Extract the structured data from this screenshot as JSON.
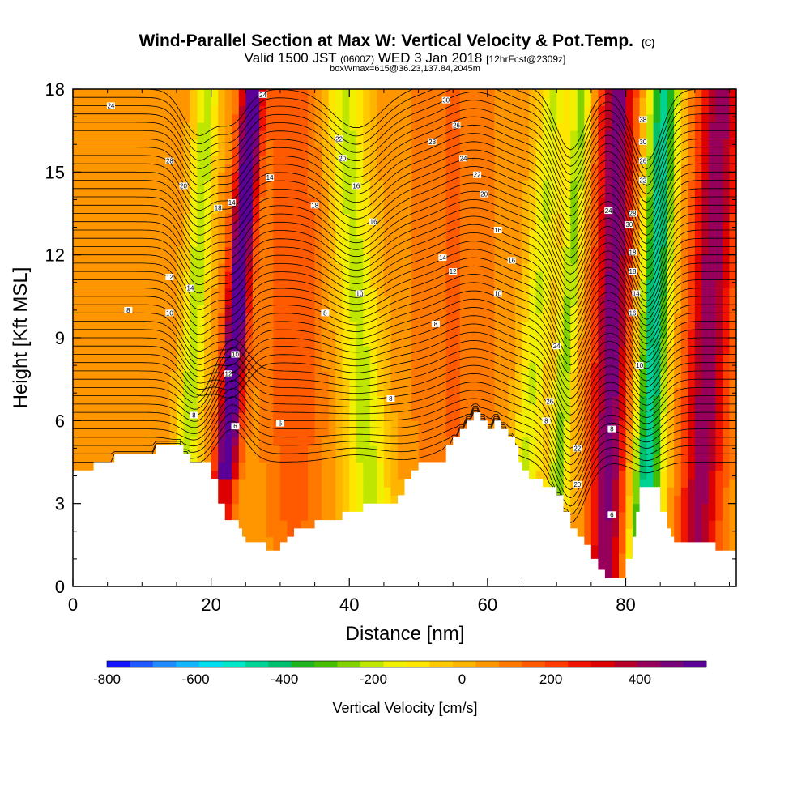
{
  "chart_data": {
    "type": "heatmap",
    "title": "Wind-Parallel Section at Max W: Vertical Velocity & Pot.Temp.",
    "title_mark": "(C)",
    "subtitle_parts": [
      "Valid 1500 JST",
      "(0600Z)",
      "WED 3 Jan 2018",
      "[12hrFcst@2309z]"
    ],
    "subtitle2": "boxWmax=615@36.23,137.84,2045m",
    "xlabel": "Distance [nm]",
    "ylabel": "Height [Kft MSL]",
    "xlim": [
      0,
      96
    ],
    "ylim": [
      0,
      18
    ],
    "x_ticks": [
      0,
      20,
      40,
      60,
      80
    ],
    "y_ticks": [
      0,
      3,
      6,
      9,
      12,
      15,
      18
    ],
    "colorbar": {
      "label": "Vertical Velocity [cm/s]",
      "ticks": [
        -800,
        -600,
        -400,
        -200,
        0,
        200,
        400
      ],
      "range": [
        -800,
        550
      ],
      "colors": [
        "#1414ff",
        "#1e5aff",
        "#1e8cff",
        "#14b4ff",
        "#00dcf0",
        "#00e6c8",
        "#00d296",
        "#00be6e",
        "#1eb41e",
        "#46be00",
        "#82d200",
        "#bee600",
        "#f0f000",
        "#ffe600",
        "#ffc800",
        "#ffb400",
        "#ff9600",
        "#ff7800",
        "#ff5a00",
        "#ff3c00",
        "#f01400",
        "#dc0000",
        "#b40028",
        "#96005a",
        "#780078",
        "#5a0096"
      ]
    },
    "velocity_features": [
      {
        "x": 23.5,
        "w": 1.6,
        "amp": 560,
        "tilt": 0.28
      },
      {
        "x": 17.5,
        "w": 1.8,
        "amp": -280,
        "tilt": 0.22
      },
      {
        "x": 41.5,
        "w": 3.0,
        "amp": -260,
        "tilt": -0.25
      },
      {
        "x": 67.0,
        "w": 2.2,
        "amp": -240,
        "tilt": 0.3
      },
      {
        "x": 71.5,
        "w": 1.5,
        "amp": -300,
        "tilt": 0.25
      },
      {
        "x": 78.0,
        "w": 2.6,
        "amp": 420,
        "tilt": 0.1
      },
      {
        "x": 84.0,
        "w": 2.3,
        "amp": -520,
        "tilt": 0.18
      },
      {
        "x": 92.0,
        "w": 3.0,
        "amp": 380,
        "tilt": 0.2
      },
      {
        "x": 32.0,
        "w": 4.0,
        "amp": 120,
        "tilt": 0.0
      },
      {
        "x": 55.0,
        "w": 5.0,
        "amp": 80,
        "tilt": 0.0
      }
    ],
    "terrain_points": [
      [
        0,
        4.2
      ],
      [
        3,
        4.2
      ],
      [
        3,
        4.5
      ],
      [
        6,
        4.5
      ],
      [
        6,
        4.8
      ],
      [
        9,
        4.8
      ],
      [
        9,
        4.8
      ],
      [
        12,
        4.8
      ],
      [
        12,
        5.1
      ],
      [
        16,
        5.1
      ],
      [
        16,
        4.8
      ],
      [
        17,
        4.8
      ],
      [
        17,
        4.5
      ],
      [
        20,
        4.5
      ],
      [
        20,
        3.9
      ],
      [
        21,
        3.9
      ],
      [
        21,
        3.0
      ],
      [
        22,
        3.0
      ],
      [
        22,
        2.4
      ],
      [
        23,
        2.4
      ],
      [
        23,
        2.4
      ],
      [
        24,
        2.4
      ],
      [
        24,
        2.1
      ],
      [
        24.5,
        2.1
      ],
      [
        24.5,
        1.8
      ],
      [
        25,
        1.8
      ],
      [
        25,
        1.6
      ],
      [
        27,
        1.6
      ],
      [
        27,
        1.6
      ],
      [
        28,
        1.6
      ],
      [
        28,
        1.3
      ],
      [
        30,
        1.3
      ],
      [
        30,
        1.6
      ],
      [
        31,
        1.6
      ],
      [
        31,
        1.8
      ],
      [
        32,
        1.8
      ],
      [
        32,
        2.1
      ],
      [
        33,
        2.1
      ],
      [
        33,
        2.1
      ],
      [
        34,
        2.1
      ],
      [
        34,
        2.1
      ],
      [
        35,
        2.1
      ],
      [
        35,
        2.4
      ],
      [
        39,
        2.4
      ],
      [
        39,
        2.7
      ],
      [
        40,
        2.7
      ],
      [
        40,
        2.7
      ],
      [
        42,
        2.7
      ],
      [
        42,
        3.0
      ],
      [
        47,
        3.0
      ],
      [
        47,
        3.3
      ],
      [
        48,
        3.3
      ],
      [
        48,
        3.9
      ],
      [
        49,
        3.9
      ],
      [
        49,
        4.2
      ],
      [
        50,
        4.2
      ],
      [
        50,
        4.5
      ],
      [
        54,
        4.5
      ],
      [
        54,
        5.1
      ],
      [
        55,
        5.1
      ],
      [
        55,
        5.4
      ],
      [
        56,
        5.4
      ],
      [
        56,
        5.7
      ],
      [
        57,
        5.7
      ],
      [
        57,
        6.0
      ],
      [
        58,
        6.0
      ],
      [
        58,
        6.3
      ],
      [
        59,
        6.3
      ],
      [
        59,
        6.0
      ],
      [
        60,
        6.0
      ],
      [
        60,
        5.7
      ],
      [
        61,
        5.7
      ],
      [
        61,
        6.0
      ],
      [
        62,
        6.0
      ],
      [
        62,
        5.7
      ],
      [
        63,
        5.7
      ],
      [
        63,
        5.4
      ],
      [
        64,
        5.4
      ],
      [
        64,
        5.1
      ],
      [
        64.5,
        5.1
      ],
      [
        64.5,
        4.5
      ],
      [
        65,
        4.5
      ],
      [
        65,
        4.2
      ],
      [
        66,
        4.2
      ],
      [
        66,
        3.9
      ],
      [
        68,
        3.9
      ],
      [
        68,
        3.6
      ],
      [
        70,
        3.6
      ],
      [
        70,
        3.3
      ],
      [
        71,
        3.3
      ],
      [
        71,
        2.7
      ],
      [
        72,
        2.7
      ],
      [
        72,
        2.1
      ],
      [
        73,
        2.1
      ],
      [
        73,
        1.8
      ],
      [
        74,
        1.8
      ],
      [
        74,
        1.5
      ],
      [
        75,
        1.5
      ],
      [
        75,
        1.0
      ],
      [
        76,
        1.0
      ],
      [
        76,
        0.6
      ],
      [
        77,
        0.6
      ],
      [
        77,
        0.3
      ],
      [
        80,
        0.3
      ],
      [
        80,
        0.6
      ],
      [
        80,
        0.6
      ],
      [
        80,
        1.0
      ],
      [
        81,
        1.0
      ],
      [
        81,
        1.8
      ],
      [
        81.5,
        1.8
      ],
      [
        81.5,
        2.7
      ],
      [
        82,
        2.7
      ],
      [
        82,
        3.6
      ],
      [
        85,
        3.6
      ],
      [
        85,
        2.7
      ],
      [
        86,
        2.7
      ],
      [
        86,
        2.1
      ],
      [
        86.5,
        2.1
      ],
      [
        86.5,
        1.8
      ],
      [
        87,
        1.8
      ],
      [
        87,
        1.6
      ],
      [
        93,
        1.6
      ],
      [
        93,
        1.3
      ],
      [
        96,
        1.3
      ]
    ],
    "theta_contours": {
      "count": 46,
      "labels": [
        {
          "x": 5.5,
          "y": 17.4,
          "text": "24"
        },
        {
          "x": 14.0,
          "y": 15.4,
          "text": "28"
        },
        {
          "x": 16.0,
          "y": 14.5,
          "text": "20"
        },
        {
          "x": 21.0,
          "y": 13.7,
          "text": "18"
        },
        {
          "x": 23.0,
          "y": 13.9,
          "text": "14"
        },
        {
          "x": 14.0,
          "y": 11.2,
          "text": "12"
        },
        {
          "x": 17.0,
          "y": 10.8,
          "text": "14"
        },
        {
          "x": 14.0,
          "y": 9.9,
          "text": "10"
        },
        {
          "x": 8.0,
          "y": 10.0,
          "text": "8"
        },
        {
          "x": 23.5,
          "y": 8.4,
          "text": "10"
        },
        {
          "x": 22.5,
          "y": 7.7,
          "text": "12"
        },
        {
          "x": 17.5,
          "y": 6.2,
          "text": "8"
        },
        {
          "x": 23.5,
          "y": 5.8,
          "text": "6"
        },
        {
          "x": 30.0,
          "y": 5.9,
          "text": "6"
        },
        {
          "x": 27.5,
          "y": 17.8,
          "text": "24"
        },
        {
          "x": 28.5,
          "y": 14.8,
          "text": "14"
        },
        {
          "x": 35.0,
          "y": 13.8,
          "text": "18"
        },
        {
          "x": 38.5,
          "y": 16.2,
          "text": "22"
        },
        {
          "x": 39.0,
          "y": 15.5,
          "text": "20"
        },
        {
          "x": 41.0,
          "y": 14.5,
          "text": "16"
        },
        {
          "x": 43.5,
          "y": 13.2,
          "text": "16"
        },
        {
          "x": 41.5,
          "y": 10.6,
          "text": "10"
        },
        {
          "x": 36.5,
          "y": 9.9,
          "text": "8"
        },
        {
          "x": 46.0,
          "y": 6.8,
          "text": "8"
        },
        {
          "x": 52.5,
          "y": 9.5,
          "text": "8"
        },
        {
          "x": 53.5,
          "y": 11.9,
          "text": "14"
        },
        {
          "x": 55.0,
          "y": 11.4,
          "text": "12"
        },
        {
          "x": 54.0,
          "y": 17.6,
          "text": "30"
        },
        {
          "x": 55.5,
          "y": 16.7,
          "text": "26"
        },
        {
          "x": 52.0,
          "y": 16.1,
          "text": "28"
        },
        {
          "x": 56.5,
          "y": 15.5,
          "text": "24"
        },
        {
          "x": 58.5,
          "y": 14.9,
          "text": "22"
        },
        {
          "x": 59.5,
          "y": 14.2,
          "text": "20"
        },
        {
          "x": 61.5,
          "y": 12.9,
          "text": "16"
        },
        {
          "x": 63.5,
          "y": 11.8,
          "text": "16"
        },
        {
          "x": 61.5,
          "y": 10.6,
          "text": "10"
        },
        {
          "x": 70.0,
          "y": 8.7,
          "text": "24"
        },
        {
          "x": 69.0,
          "y": 6.7,
          "text": "26"
        },
        {
          "x": 68.5,
          "y": 6.0,
          "text": "8"
        },
        {
          "x": 73.0,
          "y": 5.0,
          "text": "22"
        },
        {
          "x": 73.0,
          "y": 3.7,
          "text": "20"
        },
        {
          "x": 78.0,
          "y": 5.7,
          "text": "8"
        },
        {
          "x": 78.0,
          "y": 2.6,
          "text": "6"
        },
        {
          "x": 77.5,
          "y": 13.6,
          "text": "24"
        },
        {
          "x": 82.5,
          "y": 16.9,
          "text": "38"
        },
        {
          "x": 82.5,
          "y": 16.1,
          "text": "30"
        },
        {
          "x": 82.5,
          "y": 15.4,
          "text": "26"
        },
        {
          "x": 82.5,
          "y": 14.7,
          "text": "22"
        },
        {
          "x": 81.0,
          "y": 13.5,
          "text": "28"
        },
        {
          "x": 80.5,
          "y": 13.1,
          "text": "30"
        },
        {
          "x": 81.0,
          "y": 12.1,
          "text": "18"
        },
        {
          "x": 81.0,
          "y": 11.4,
          "text": "18"
        },
        {
          "x": 81.5,
          "y": 10.6,
          "text": "14"
        },
        {
          "x": 81.0,
          "y": 9.9,
          "text": "16"
        },
        {
          "x": 82.0,
          "y": 8.0,
          "text": "10"
        }
      ]
    }
  }
}
